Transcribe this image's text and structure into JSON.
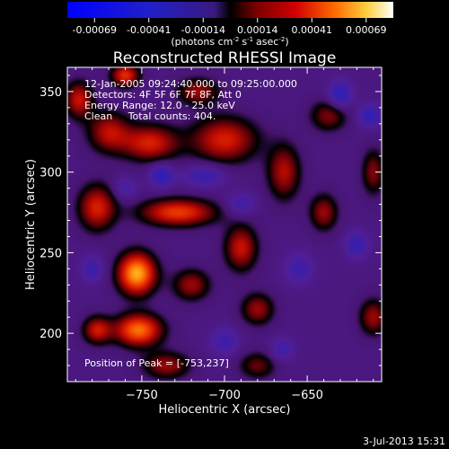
{
  "chart_data": {
    "type": "heatmap",
    "title": "Reconstructed RHESSI Image",
    "xlabel": "Heliocentric X (arcsec)",
    "ylabel": "Heliocentric Y (arcsec)",
    "xlim": [
      -795,
      -605
    ],
    "ylim": [
      170,
      365
    ],
    "xticks": [
      -750,
      -700,
      -650
    ],
    "yticks": [
      200,
      250,
      300,
      350
    ],
    "colorbar": {
      "ticks": [
        "-0.00069",
        "-0.00041",
        "-0.00014",
        "0.00014",
        "0.00041",
        "0.00069"
      ],
      "unit_text": {
        "a": "(photons cm",
        "b": "s",
        "c": "asec",
        "d": ")"
      },
      "unit_exponents": {
        "cm": "-2",
        "s": "-1",
        "asec": "-2"
      },
      "range": [
        -0.00069,
        0.00069
      ]
    },
    "annotations": [
      "12-Jan-2005 09:24:40.000 to 09:25:00.000",
      "Detectors: 4F 5F 6F 7F 8F, Att 0",
      "Energy Range: 12.0 - 25.0 keV",
      "Clean     Total counts: 404."
    ],
    "peak_label": "Position of Peak = [-753,237]",
    "peak": [
      -753,
      237
    ],
    "sources": [
      {
        "x": -753,
        "y": 237,
        "sx": 8,
        "sy": 9,
        "amp": 1.0
      },
      {
        "x": -752,
        "y": 202,
        "sx": 10,
        "sy": 7,
        "amp": 0.85
      },
      {
        "x": -777,
        "y": 202,
        "sx": 6,
        "sy": 6,
        "amp": 0.55
      },
      {
        "x": -690,
        "y": 253,
        "sx": 7,
        "sy": 10,
        "amp": 0.55
      },
      {
        "x": -728,
        "y": 275,
        "sx": 16,
        "sy": 6,
        "amp": 0.7
      },
      {
        "x": -777,
        "y": 278,
        "sx": 8,
        "sy": 10,
        "amp": 0.6
      },
      {
        "x": -700,
        "y": 320,
        "sx": 14,
        "sy": 10,
        "amp": 0.6
      },
      {
        "x": -745,
        "y": 318,
        "sx": 12,
        "sy": 8,
        "amp": 0.6
      },
      {
        "x": -770,
        "y": 325,
        "sx": 9,
        "sy": 9,
        "amp": 0.5
      },
      {
        "x": -664,
        "y": 300,
        "sx": 7,
        "sy": 12,
        "amp": 0.5
      },
      {
        "x": -640,
        "y": 275,
        "sx": 6,
        "sy": 8,
        "amp": 0.45
      },
      {
        "x": -760,
        "y": 360,
        "sx": 6,
        "sy": 5,
        "amp": 0.65
      },
      {
        "x": -788,
        "y": 345,
        "sx": 6,
        "sy": 8,
        "amp": 0.55
      },
      {
        "x": -716,
        "y": 350,
        "sx": 9,
        "sy": 6,
        "amp": 0.45
      },
      {
        "x": -680,
        "y": 215,
        "sx": 7,
        "sy": 7,
        "amp": 0.45
      },
      {
        "x": -720,
        "y": 230,
        "sx": 8,
        "sy": 7,
        "amp": 0.45
      },
      {
        "x": -735,
        "y": 180,
        "sx": 10,
        "sy": 6,
        "amp": 0.45
      },
      {
        "x": -610,
        "y": 210,
        "sx": 6,
        "sy": 8,
        "amp": 0.45
      },
      {
        "x": -637,
        "y": 335,
        "sx": 8,
        "sy": 7,
        "amp": 0.4
      },
      {
        "x": -610,
        "y": 300,
        "sx": 5,
        "sy": 10,
        "amp": 0.4
      },
      {
        "x": -680,
        "y": 180,
        "sx": 8,
        "sy": 6,
        "amp": 0.35
      },
      {
        "x": -712,
        "y": 298,
        "sx": 9,
        "sy": 5,
        "amp": -0.35
      },
      {
        "x": -738,
        "y": 298,
        "sx": 5,
        "sy": 5,
        "amp": -0.45
      },
      {
        "x": -630,
        "y": 348,
        "sx": 5,
        "sy": 6,
        "amp": -0.45
      },
      {
        "x": -612,
        "y": 335,
        "sx": 5,
        "sy": 5,
        "amp": -0.4
      },
      {
        "x": -655,
        "y": 240,
        "sx": 6,
        "sy": 7,
        "amp": -0.3
      },
      {
        "x": -620,
        "y": 255,
        "sx": 5,
        "sy": 6,
        "amp": -0.35
      },
      {
        "x": -700,
        "y": 195,
        "sx": 6,
        "sy": 6,
        "amp": -0.3
      },
      {
        "x": -780,
        "y": 240,
        "sx": 5,
        "sy": 6,
        "amp": -0.3
      },
      {
        "x": -665,
        "y": 190,
        "sx": 5,
        "sy": 5,
        "amp": -0.3
      },
      {
        "x": -760,
        "y": 290,
        "sx": 5,
        "sy": 5,
        "amp": -0.25
      },
      {
        "x": -690,
        "y": 280,
        "sx": 6,
        "sy": 5,
        "amp": -0.3
      }
    ]
  },
  "footer": {
    "timestamp": "3-Jul-2013 15:31"
  }
}
